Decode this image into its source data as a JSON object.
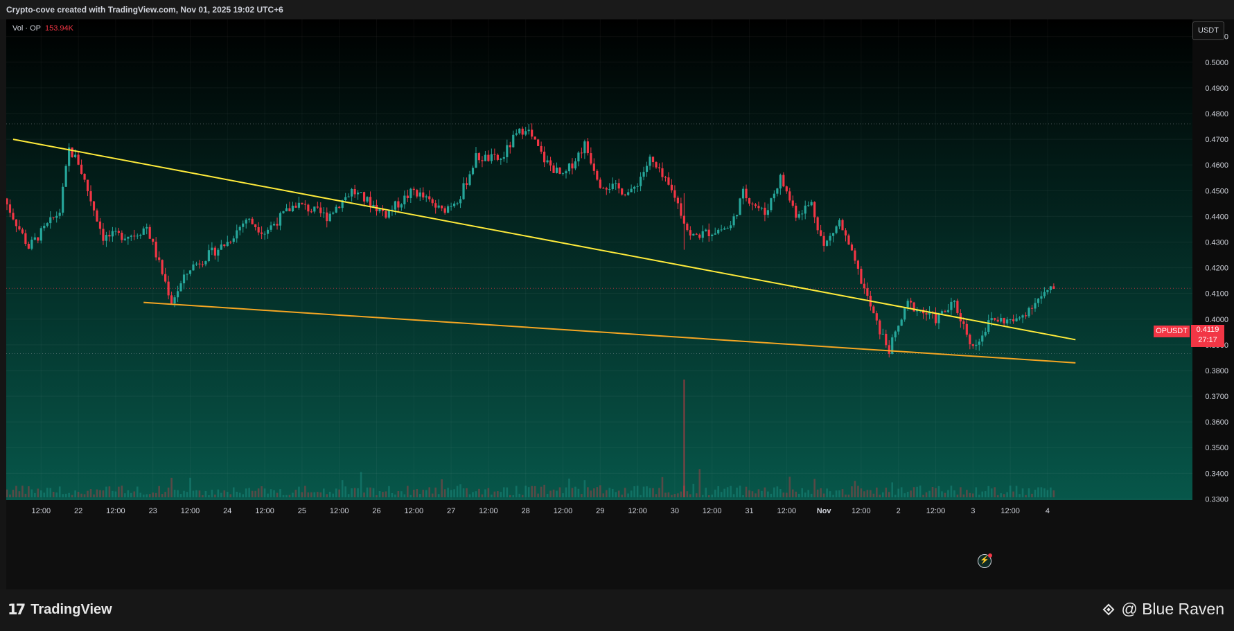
{
  "header": {
    "caption": "Crypto-cove created with TradingView.com, Nov 01, 2025 19:02 UTC+6"
  },
  "volume_label": {
    "prefix": "Vol · OP",
    "value": "153.94K"
  },
  "currency_button": "USDT",
  "price_tag": {
    "symbol": "OPUSDT",
    "price": "0.4119",
    "countdown": "27:17"
  },
  "footer": {
    "logo_text": "TradingView",
    "brand_text": "@ Blue Raven"
  },
  "colors": {
    "up": "#26a69a",
    "down": "#f23645",
    "trendline_upper": "#ffeb3b",
    "trendline_lower": "#f5a623",
    "bg_top": "#000000",
    "bg_bottom": "#07574a"
  },
  "chart_data": {
    "type": "candlestick",
    "symbol": "OPUSDT",
    "quote": "USDT",
    "x_tick_labels": [
      "12:00",
      "22",
      "12:00",
      "23",
      "12:00",
      "24",
      "12:00",
      "25",
      "12:00",
      "26",
      "12:00",
      "27",
      "12:00",
      "28",
      "12:00",
      "29",
      "12:00",
      "30",
      "12:00",
      "31",
      "12:00",
      "Nov",
      "12:00",
      "2",
      "12:00",
      "3",
      "12:00",
      "4"
    ],
    "y_tick_labels": [
      "0.5100",
      "0.5000",
      "0.4900",
      "0.4800",
      "0.4700",
      "0.4600",
      "0.4500",
      "0.4400",
      "0.4300",
      "0.4200",
      "0.4100",
      "0.4000",
      "0.3900",
      "0.3800",
      "0.3700",
      "0.3600",
      "0.3500",
      "0.3400",
      "0.3300"
    ],
    "y_range": [
      0.3285,
      0.5145
    ],
    "x_range_days": [
      21.3,
      4.5
    ],
    "last_price": 0.4119,
    "horizontal_levels": [
      0.476,
      0.412,
      0.3866
    ],
    "trendlines": [
      {
        "name": "upper",
        "from": {
          "x": "Oct 21 03:00",
          "y": 0.47
        },
        "to": {
          "x": "Nov 4 09:00",
          "y": 0.392
        }
      },
      {
        "name": "lower",
        "from": {
          "x": "Oct 22 21:00",
          "y": 0.4065
        },
        "to": {
          "x": "Nov 4 09:00",
          "y": 0.383
        }
      }
    ],
    "price_path": [
      {
        "t": "Oct 21 00:00",
        "p": 0.447
      },
      {
        "t": "Oct 21 08:00",
        "p": 0.428
      },
      {
        "t": "Oct 21 18:00",
        "p": 0.442
      },
      {
        "t": "Oct 21 21:00",
        "p": 0.466
      },
      {
        "t": "Oct 22 00:00",
        "p": 0.461
      },
      {
        "t": "Oct 22 08:00",
        "p": 0.432
      },
      {
        "t": "Oct 22 18:00",
        "p": 0.433
      },
      {
        "t": "Oct 22 22:00",
        "p": 0.436
      },
      {
        "t": "Oct 23 06:00",
        "p": 0.407
      },
      {
        "t": "Oct 23 12:00",
        "p": 0.42
      },
      {
        "t": "Oct 24 00:00",
        "p": 0.43
      },
      {
        "t": "Oct 24 06:00",
        "p": 0.439
      },
      {
        "t": "Oct 24 12:00",
        "p": 0.434
      },
      {
        "t": "Oct 24 22:00",
        "p": 0.445
      },
      {
        "t": "Oct 25 08:00",
        "p": 0.44
      },
      {
        "t": "Oct 25 16:00",
        "p": 0.45
      },
      {
        "t": "Oct 26 03:00",
        "p": 0.441
      },
      {
        "t": "Oct 26 12:00",
        "p": 0.45
      },
      {
        "t": "Oct 26 21:00",
        "p": 0.442
      },
      {
        "t": "Oct 27 03:00",
        "p": 0.448
      },
      {
        "t": "Oct 27 08:00",
        "p": 0.463
      },
      {
        "t": "Oct 27 16:00",
        "p": 0.462
      },
      {
        "t": "Oct 27 20:00",
        "p": 0.47
      },
      {
        "t": "Oct 28 00:00",
        "p": 0.475
      },
      {
        "t": "Oct 28 06:00",
        "p": 0.462
      },
      {
        "t": "Oct 28 12:00",
        "p": 0.455
      },
      {
        "t": "Oct 28 19:00",
        "p": 0.468
      },
      {
        "t": "Oct 29 00:00",
        "p": 0.453
      },
      {
        "t": "Oct 29 10:00",
        "p": 0.449
      },
      {
        "t": "Oct 29 16:00",
        "p": 0.462
      },
      {
        "t": "Oct 30 00:00",
        "p": 0.448
      },
      {
        "t": "Oct 30 05:00",
        "p": 0.432
      },
      {
        "t": "Oct 30 18:00",
        "p": 0.436
      },
      {
        "t": "Oct 30 22:00",
        "p": 0.449
      },
      {
        "t": "Oct 31 05:00",
        "p": 0.441
      },
      {
        "t": "Oct 31 10:00",
        "p": 0.455
      },
      {
        "t": "Oct 31 15:00",
        "p": 0.441
      },
      {
        "t": "Oct 31 20:00",
        "p": 0.445
      },
      {
        "t": "Nov 1 00:00",
        "p": 0.428
      },
      {
        "t": "Nov 1 05:00",
        "p": 0.438
      },
      {
        "t": "Nov 1 12:00",
        "p": 0.415
      },
      {
        "t": "Nov 1 17:00",
        "p": 0.398
      },
      {
        "t": "Nov 1 21:00",
        "p": 0.388
      },
      {
        "t": "Nov 2 03:00",
        "p": 0.406
      },
      {
        "t": "Nov 2 12:00",
        "p": 0.4
      },
      {
        "t": "Nov 2 18:00",
        "p": 0.406
      },
      {
        "t": "Nov 3 00:00",
        "p": 0.389
      },
      {
        "t": "Nov 3 06:00",
        "p": 0.4
      },
      {
        "t": "Nov 3 14:00",
        "p": 0.399
      },
      {
        "t": "Nov 3 20:00",
        "p": 0.407
      },
      {
        "t": "Nov 4 02:00",
        "p": 0.4119
      }
    ],
    "volume_spike": {
      "t": "Oct 30 03:00",
      "relative": 1.0
    }
  }
}
